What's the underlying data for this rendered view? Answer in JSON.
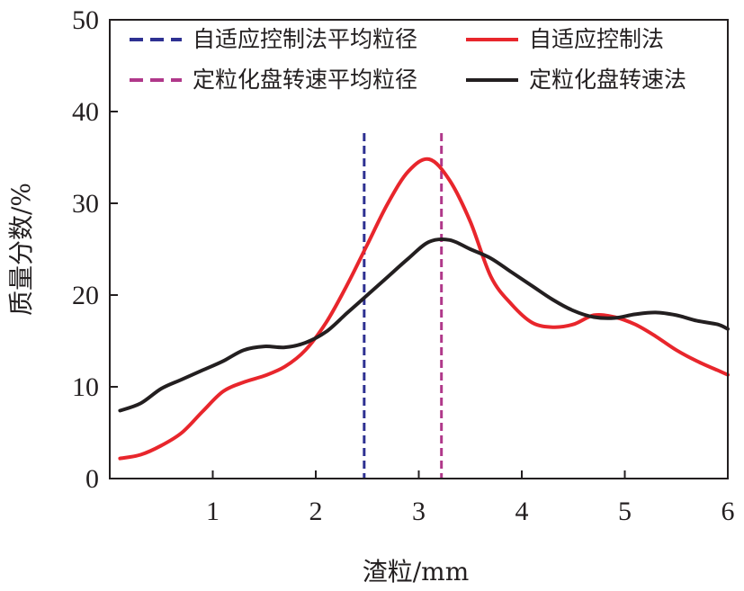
{
  "chart_data": {
    "type": "line",
    "xlabel": "渣粒/mm",
    "ylabel": "质量分数/%",
    "xlim": [
      0,
      6
    ],
    "ylim": [
      0,
      50
    ],
    "x_ticks": [
      "1",
      "2",
      "3",
      "4",
      "5",
      "6"
    ],
    "y_ticks": [
      "0",
      "10",
      "20",
      "30",
      "40",
      "50"
    ],
    "grid": false,
    "legend_position": "top",
    "series": [
      {
        "name": "自适应控制法",
        "color": "#e8262c",
        "x": [
          0.1,
          0.3,
          0.5,
          0.7,
          0.9,
          1.1,
          1.3,
          1.5,
          1.7,
          1.9,
          2.1,
          2.3,
          2.5,
          2.7,
          2.9,
          3.1,
          3.3,
          3.5,
          3.7,
          3.9,
          4.1,
          4.3,
          4.5,
          4.7,
          4.9,
          5.1,
          5.3,
          5.5,
          5.7,
          5.9,
          6.0
        ],
        "y": [
          2.2,
          2.6,
          3.6,
          5.0,
          7.3,
          9.5,
          10.5,
          11.2,
          12.2,
          14.0,
          17.0,
          21.0,
          25.5,
          30.0,
          33.5,
          34.8,
          32.5,
          28.0,
          22.0,
          19.0,
          17.0,
          16.5,
          16.8,
          17.8,
          17.6,
          16.8,
          15.5,
          14.0,
          12.8,
          11.8,
          11.3
        ]
      },
      {
        "name": "定粒化盘转速法",
        "color": "#231f20",
        "x": [
          0.1,
          0.3,
          0.5,
          0.7,
          0.9,
          1.1,
          1.3,
          1.5,
          1.7,
          1.9,
          2.1,
          2.3,
          2.5,
          2.7,
          2.9,
          3.1,
          3.3,
          3.5,
          3.7,
          3.9,
          4.1,
          4.3,
          4.5,
          4.7,
          4.9,
          5.1,
          5.3,
          5.5,
          5.7,
          5.9,
          6.0
        ],
        "y": [
          7.4,
          8.2,
          9.8,
          10.8,
          11.8,
          12.8,
          14.0,
          14.4,
          14.3,
          14.8,
          16.0,
          18.0,
          20.0,
          22.0,
          24.0,
          25.8,
          26.0,
          25.0,
          24.0,
          22.5,
          21.0,
          19.5,
          18.3,
          17.6,
          17.5,
          17.9,
          18.1,
          17.8,
          17.2,
          16.8,
          16.3
        ]
      }
    ],
    "vlines": [
      {
        "name": "自适应控制法平均粒径",
        "x": 2.47,
        "color": "#2e3192"
      },
      {
        "name": "定粒化盘转速平均粒径",
        "x": 3.22,
        "color": "#b0388a"
      }
    ],
    "legend_order": [
      [
        "自适应控制法平均粒径",
        "自适应控制法"
      ],
      [
        "定粒化盘转速平均粒径",
        "定粒化盘转速法"
      ]
    ]
  }
}
